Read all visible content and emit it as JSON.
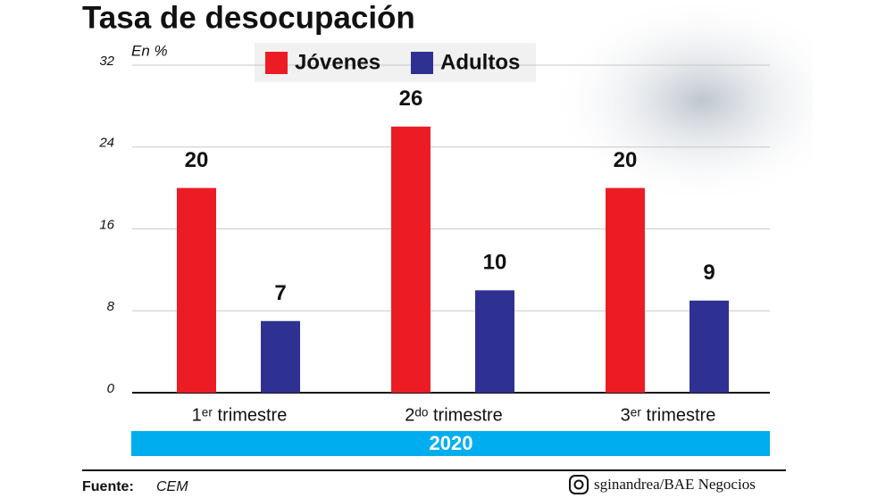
{
  "chart_data": {
    "type": "bar",
    "title": "Tasa de desocupación",
    "y_label": "En %",
    "categories": [
      "1ᵉʳ trimestre",
      "2ᵈᵒ trimestre",
      "3ᵉʳ trimestre"
    ],
    "series": [
      {
        "name": "Jóvenes",
        "color": "#ec1c24",
        "values": [
          20,
          26,
          20
        ]
      },
      {
        "name": "Adultos",
        "color": "#2e3192",
        "values": [
          7,
          10,
          9
        ]
      }
    ],
    "ylim": [
      0,
      32
    ],
    "yticks": [
      0,
      8,
      16,
      24,
      32
    ],
    "grid": true,
    "band_label": "2020",
    "source_label": "Fuente:",
    "source": "CEM",
    "credit": "sginandrea/BAE Negocios"
  }
}
